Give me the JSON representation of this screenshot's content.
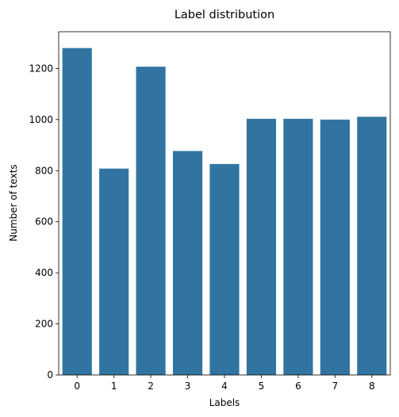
{
  "chart_data": {
    "type": "bar",
    "title": "Label distribution",
    "xlabel": "Labels",
    "ylabel": "Number of texts",
    "categories": [
      "0",
      "1",
      "2",
      "3",
      "4",
      "5",
      "6",
      "7",
      "8"
    ],
    "values": [
      1280,
      808,
      1207,
      877,
      826,
      1003,
      1003,
      1000,
      1011
    ],
    "ylim": [
      0,
      1344
    ],
    "yticks": [
      0,
      200,
      400,
      600,
      800,
      1000,
      1200
    ],
    "grid": false,
    "bar_color": "#3274a1"
  }
}
